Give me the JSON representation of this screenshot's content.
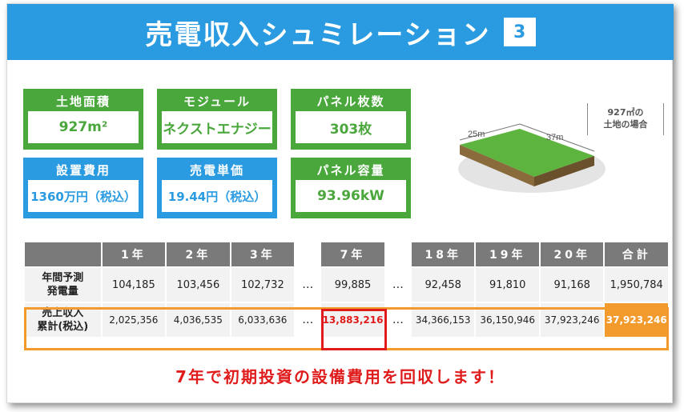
{
  "banner": {
    "title": "売電収入シュミレーション",
    "badge": "3"
  },
  "specs": [
    {
      "label": "土地面積",
      "value": "927m²"
    },
    {
      "label": "モジュール",
      "value": "ネクストエナジー"
    },
    {
      "label": "パネル枚数",
      "value": "303枚"
    },
    {
      "label": "設置費用",
      "value": "1360万円（税込）"
    },
    {
      "label": "売電単価",
      "value": "19.44円（税込）"
    },
    {
      "label": "パネル容量",
      "value": "93.96kW"
    }
  ],
  "land": {
    "note_line1": "927㎡の",
    "note_line2": "土地の場合",
    "width_label": "25m",
    "length_label": "37m"
  },
  "table": {
    "headers": [
      "1年",
      "2年",
      "3年",
      "7年",
      "18年",
      "19年",
      "20年",
      "合計"
    ],
    "ellipsis": "…",
    "rows": [
      {
        "label_line1": "年間予測",
        "label_line2": "発電量",
        "values": [
          "104,185",
          "103,456",
          "102,732",
          "99,885",
          "92,458",
          "91,810",
          "91,168",
          "1,950,784"
        ]
      },
      {
        "label_line1": "売上収入",
        "label_line2": "累計(税込)",
        "values": [
          "2,025,356",
          "4,036,535",
          "6,033,636",
          "13,883,216",
          "34,366,153",
          "36,150,946",
          "37,923,246",
          "37,923,246"
        ]
      }
    ]
  },
  "caption": "7年で初期投資の設備費用を回収します！",
  "colors": {
    "blue": "#2a9be0",
    "green": "#4aa73c",
    "orange": "#f39a2c",
    "red": "#e01b1b"
  }
}
